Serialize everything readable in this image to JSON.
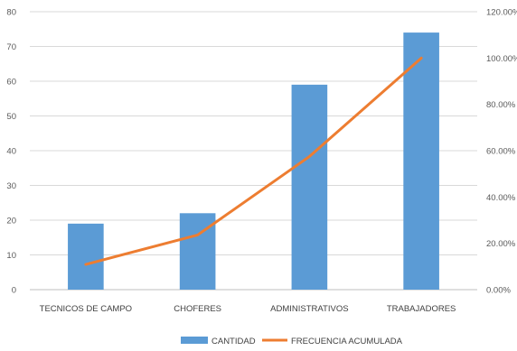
{
  "chart_data": {
    "type": "bar",
    "categories": [
      "TECNICOS DE CAMPO",
      "CHOFERES",
      "ADMINISTRATIVOS",
      "TRABAJADORES"
    ],
    "series": [
      {
        "name": "CANTIDAD",
        "type": "bar",
        "axis": "left",
        "color": "#5b9bd5",
        "values": [
          19,
          22,
          59,
          74
        ]
      },
      {
        "name": "FRECUENCIA ACUMULADA",
        "type": "line",
        "axis": "right",
        "color": "#ed7d31",
        "values": [
          10.9,
          23.6,
          57.5,
          100.0
        ]
      }
    ],
    "ylim": [
      0,
      80
    ],
    "yticks": [
      "0",
      "10",
      "20",
      "30",
      "40",
      "50",
      "60",
      "70",
      "80"
    ],
    "y2lim": [
      0,
      120
    ],
    "y2ticks": [
      "0.00%",
      "20.00%",
      "40.00%",
      "60.00%",
      "80.00%",
      "100.00%",
      "120.00%"
    ],
    "grid": true,
    "legend_position": "bottom"
  }
}
